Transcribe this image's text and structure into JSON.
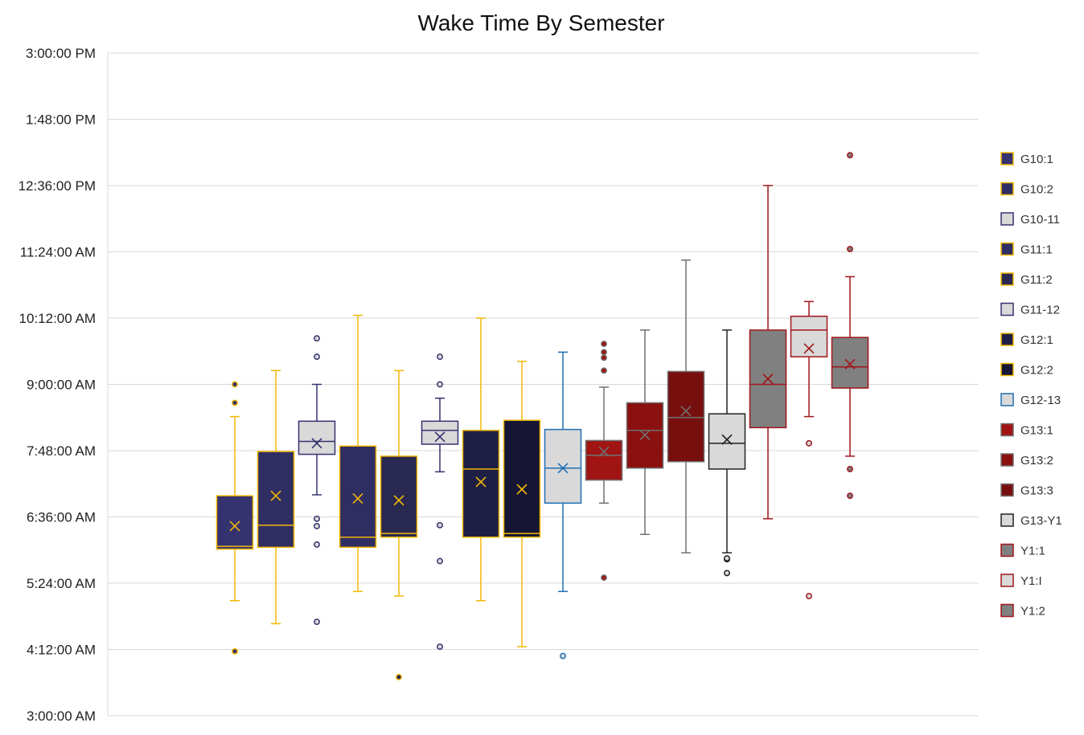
{
  "chart_data": {
    "type": "box",
    "title": "Wake Time By Semester",
    "xlabel": "",
    "ylabel": "",
    "y_unit": "time of day",
    "ylim": [
      "3:00:00 AM",
      "3:00:00 PM"
    ],
    "y_ticks": [
      "3:00:00 AM",
      "4:12:00 AM",
      "5:24:00 AM",
      "6:36:00 AM",
      "7:48:00 AM",
      "9:00:00 AM",
      "10:12:00 AM",
      "11:24:00 AM",
      "12:36:00 PM",
      "1:48:00 PM",
      "3:00:00 PM"
    ],
    "grid": true,
    "legend_position": "right",
    "series": [
      {
        "name": "G10:1",
        "fill": "#353270",
        "stroke": "#F2B705",
        "mean_color": "#F2B705",
        "min": "5:05:00 AM",
        "q1": "6:01:00 AM",
        "median": "6:04:00 AM",
        "q3": "6:59:00 AM",
        "max": "8:25:00 AM",
        "mean": "6:26:00 AM",
        "outliers": [
          "4:10:00 AM",
          "8:40:00 AM",
          "9:00:00 AM"
        ]
      },
      {
        "name": "G10:2",
        "fill": "#2F2E63",
        "stroke": "#F2B705",
        "mean_color": "#F2B705",
        "min": "4:40:00 AM",
        "q1": "6:03:00 AM",
        "median": "6:27:00 AM",
        "q3": "7:47:00 AM",
        "max": "9:15:00 AM",
        "mean": "6:59:00 AM",
        "outliers": []
      },
      {
        "name": "G10-11",
        "fill": "#D9D9D9",
        "stroke": "#353270",
        "mean_color": "#353270",
        "min": "7:00:00 AM",
        "q1": "7:44:00 AM",
        "median": "7:58:00 AM",
        "q3": "8:20:00 AM",
        "max": "9:00:00 AM",
        "mean": "7:56:00 AM",
        "outliers": [
          "4:42:00 AM",
          "6:06:00 AM",
          "6:26:00 AM",
          "6:34:00 AM",
          "9:30:00 AM",
          "9:50:00 AM"
        ]
      },
      {
        "name": "G11:1",
        "fill": "#2F2E63",
        "stroke": "#F2B705",
        "mean_color": "#F2B705",
        "min": "5:15:00 AM",
        "q1": "6:03:00 AM",
        "median": "6:14:00 AM",
        "q3": "7:53:00 AM",
        "max": "10:15:00 AM",
        "mean": "6:56:00 AM",
        "outliers": []
      },
      {
        "name": "G11:2",
        "fill": "#282850",
        "stroke": "#F2B705",
        "mean_color": "#F2B705",
        "min": "5:10:00 AM",
        "q1": "6:14:00 AM",
        "median": "6:18:00 AM",
        "q3": "7:42:00 AM",
        "max": "9:15:00 AM",
        "mean": "6:54:00 AM",
        "outliers": [
          "3:42:00 AM"
        ]
      },
      {
        "name": "G11-12",
        "fill": "#D9D9D9",
        "stroke": "#353270",
        "mean_color": "#353270",
        "min": "7:25:00 AM",
        "q1": "7:55:00 AM",
        "median": "8:10:00 AM",
        "q3": "8:20:00 AM",
        "max": "8:45:00 AM",
        "mean": "8:03:00 AM",
        "outliers": [
          "4:15:00 AM",
          "5:48:00 AM",
          "6:27:00 AM",
          "9:00:00 AM",
          "9:30:00 AM"
        ]
      },
      {
        "name": "G12:1",
        "fill": "#1F1F45",
        "stroke": "#F2B705",
        "mean_color": "#F2B705",
        "min": "5:05:00 AM",
        "q1": "6:14:00 AM",
        "median": "7:28:00 AM",
        "q3": "8:10:00 AM",
        "max": "10:12:00 AM",
        "mean": "7:14:00 AM",
        "outliers": []
      },
      {
        "name": "G12:2",
        "fill": "#161634",
        "stroke": "#F2B705",
        "mean_color": "#F2B705",
        "min": "4:15:00 AM",
        "q1": "6:14:00 AM",
        "median": "6:18:00 AM",
        "q3": "8:21:00 AM",
        "max": "9:25:00 AM",
        "mean": "7:06:00 AM",
        "outliers": []
      },
      {
        "name": "G12-13",
        "fill": "#D9D9D9",
        "stroke": "#1F6FB2",
        "mean_color": "#1F6FB2",
        "min": "5:15:00 AM",
        "q1": "6:51:00 AM",
        "median": "7:29:00 AM",
        "q3": "8:11:00 AM",
        "max": "9:35:00 AM",
        "mean": "7:29:00 AM",
        "outliers": [
          "4:05:00 AM"
        ]
      },
      {
        "name": "G13:1",
        "fill": "#A01414",
        "stroke": "#707070",
        "mean_color": "#707070",
        "min": "6:51:00 AM",
        "q1": "7:16:00 AM",
        "median": "7:43:00 AM",
        "q3": "7:59:00 AM",
        "max": "8:57:00 AM",
        "mean": "7:47:00 AM",
        "outliers": [
          "5:30:00 AM",
          "9:15:00 AM",
          "9:29:00 AM",
          "9:35:00 AM",
          "9:44:00 AM"
        ]
      },
      {
        "name": "G13:2",
        "fill": "#8B1010",
        "stroke": "#707070",
        "mean_color": "#707070",
        "min": "6:17:00 AM",
        "q1": "7:29:00 AM",
        "median": "8:10:00 AM",
        "q3": "8:40:00 AM",
        "max": "9:59:00 AM",
        "mean": "8:05:00 AM",
        "outliers": []
      },
      {
        "name": "G13:3",
        "fill": "#780F0F",
        "stroke": "#707070",
        "mean_color": "#707070",
        "min": "5:57:00 AM",
        "q1": "7:36:00 AM",
        "median": "8:24:00 AM",
        "q3": "9:14:00 AM",
        "max": "11:15:00 AM",
        "mean": "8:31:00 AM",
        "outliers": []
      },
      {
        "name": "G13-Y1",
        "fill": "#D9D9D9",
        "stroke": "#222222",
        "mean_color": "#222222",
        "min": "5:57:00 AM",
        "q1": "7:28:00 AM",
        "median": "7:56:00 AM",
        "q3": "8:28:00 AM",
        "max": "9:59:00 AM",
        "mean": "8:00:00 AM",
        "outliers": [
          "5:35:00 AM",
          "5:50:00 AM",
          "5:51:00 AM"
        ]
      },
      {
        "name": "Y1:1",
        "fill": "#808080",
        "stroke": "#A0161C",
        "mean_color": "#A0161C",
        "min": "6:34:00 AM",
        "q1": "8:13:00 AM",
        "median": "9:00:00 AM",
        "q3": "9:59:00 AM",
        "max": "12:36:00 PM",
        "mean": "9:06:00 AM",
        "outliers": []
      },
      {
        "name": "Y1:I",
        "fill": "#D9D9D9",
        "stroke": "#A0161C",
        "mean_color": "#A0161C",
        "min": "8:25:00 AM",
        "q1": "9:30:00 AM",
        "median": "9:59:00 AM",
        "q3": "10:14:00 AM",
        "max": "10:30:00 AM",
        "mean": "9:39:00 AM",
        "outliers": [
          "5:10:00 AM",
          "7:56:00 AM"
        ]
      },
      {
        "name": "Y1:2",
        "fill": "#808080",
        "stroke": "#A0161C",
        "mean_color": "#A0161C",
        "min": "7:42:00 AM",
        "q1": "8:56:00 AM",
        "median": "9:19:00 AM",
        "q3": "9:51:00 AM",
        "max": "10:57:00 AM",
        "mean": "9:22:00 AM",
        "outliers": [
          "6:59:00 AM",
          "7:28:00 AM",
          "11:27:00 AM",
          "1:09:00 PM"
        ]
      }
    ]
  }
}
